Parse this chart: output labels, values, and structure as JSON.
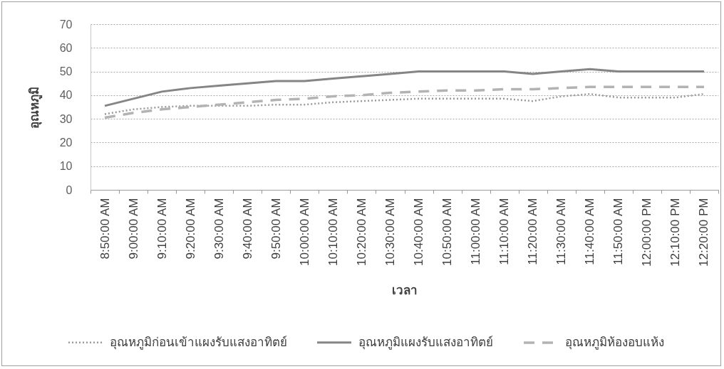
{
  "chart_data": {
    "type": "line",
    "xlabel": "เวลา",
    "ylabel": "อุณหภูมิ",
    "categories": [
      "8:50:00 AM",
      "9:00:00 AM",
      "9:10:00 AM",
      "9:20:00 AM",
      "9:30:00 AM",
      "9:40:00 AM",
      "9:50:00 AM",
      "10:00:00 AM",
      "10:10:00 AM",
      "10:20:00 AM",
      "10:30:00 AM",
      "10:40:00 AM",
      "10:50:00 AM",
      "11:00:00 AM",
      "11:10:00 AM",
      "11:20:00 AM",
      "11:30:00 AM",
      "11:40:00 AM",
      "11:50:00 AM",
      "12:00:00 PM",
      "12:10:00 PM",
      "12:20:00 PM"
    ],
    "series": [
      {
        "name": "อุณหภูมิก่อนเข้าแผงรับแสงอาทิตย์",
        "color": "#9a9a9a",
        "line_style": "dotted",
        "values": [
          32,
          34,
          35,
          35.5,
          35.5,
          35.5,
          36,
          36,
          37,
          37.5,
          38,
          38.5,
          38.5,
          38.5,
          38.5,
          37.5,
          39.5,
          40.5,
          39,
          39,
          39,
          40.5
        ]
      },
      {
        "name": "อุณหภูมิแผงรับแสงอาทิตย์",
        "color": "#858585",
        "line_style": "solid",
        "values": [
          35.5,
          38.5,
          41.5,
          43,
          44,
          45,
          46,
          46,
          47,
          48,
          49,
          50,
          50,
          50,
          50,
          49,
          50,
          51,
          50,
          50,
          50,
          50
        ]
      },
      {
        "name": "อุณหภูมิห้องอบแห้ง",
        "color": "#b3b3b3",
        "line_style": "dashed",
        "values": [
          30.5,
          32.5,
          34,
          35,
          36,
          37,
          38,
          38.5,
          39.5,
          40,
          41,
          41.5,
          42,
          42,
          42.5,
          42.5,
          43,
          43.5,
          43.5,
          43.5,
          43.5,
          43.5
        ]
      }
    ],
    "ylim": [
      0,
      70
    ],
    "yticks": [
      0,
      10,
      20,
      30,
      40,
      50,
      60,
      70
    ],
    "grid": "y",
    "legend": "bottom"
  }
}
